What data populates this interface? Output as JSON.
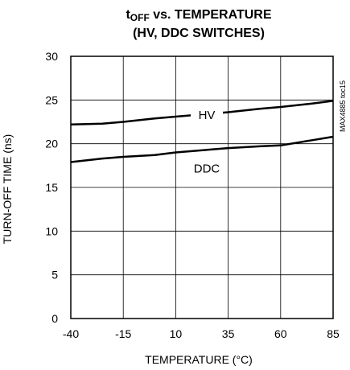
{
  "chart_data": {
    "type": "line",
    "title_line1_main": "t",
    "title_line1_sub": "OFF",
    "title_line1_rest": " vs. TEMPERATURE",
    "title_line2": "(HV, DDC SWITCHES)",
    "xlabel": "TEMPERATURE (°C)",
    "ylabel": "TURN-OFF TIME (ns)",
    "side_label": "MAX4885 toc15",
    "xlim": [
      -40,
      85
    ],
    "ylim": [
      0,
      30
    ],
    "x_ticks": [
      -40,
      -15,
      10,
      35,
      60,
      85
    ],
    "y_ticks": [
      0,
      5,
      10,
      15,
      20,
      25,
      30
    ],
    "grid": true,
    "series": [
      {
        "name": "HV",
        "x": [
          -40,
          -25,
          -15,
          0,
          10,
          25,
          35,
          50,
          60,
          75,
          85
        ],
        "values": [
          22.2,
          22.3,
          22.5,
          22.9,
          23.1,
          23.4,
          23.6,
          24.0,
          24.2,
          24.6,
          24.9
        ]
      },
      {
        "name": "DDC",
        "x": [
          -40,
          -25,
          -15,
          0,
          10,
          25,
          35,
          50,
          60,
          75,
          85
        ],
        "values": [
          17.9,
          18.3,
          18.5,
          18.7,
          19.0,
          19.3,
          19.5,
          19.7,
          19.8,
          20.4,
          20.8
        ]
      }
    ]
  }
}
